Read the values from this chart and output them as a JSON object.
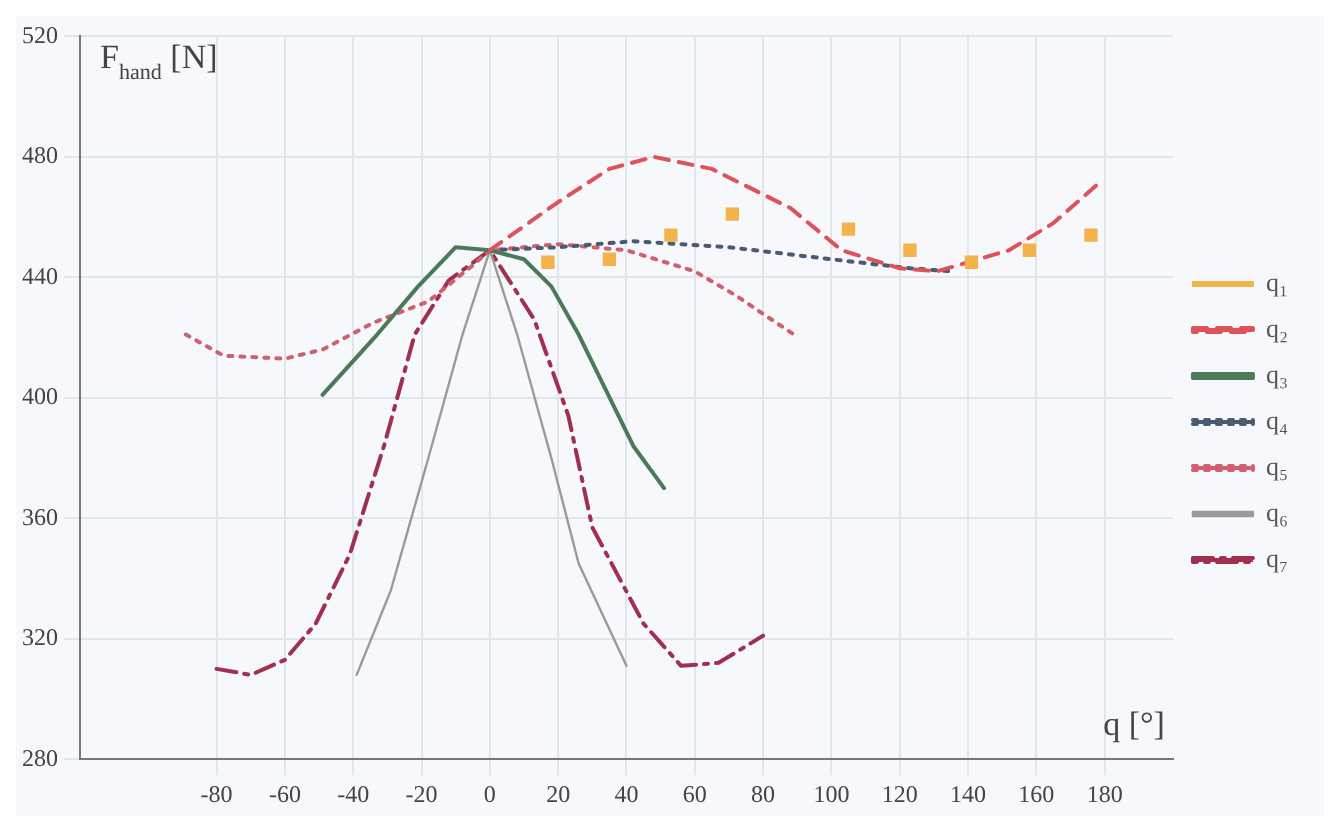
{
  "chart_data": {
    "type": "line",
    "ylabel": "F$_{hand}$ [N]",
    "xlabel": "q [°]",
    "xlim": [
      -120,
      200
    ],
    "ylim": [
      280,
      520
    ],
    "xticks": [
      -80,
      -60,
      -40,
      -20,
      0,
      20,
      40,
      60,
      80,
      100,
      120,
      140,
      160,
      180
    ],
    "yticks": [
      280,
      320,
      360,
      400,
      440,
      480,
      520
    ],
    "grid": true,
    "legend": "right",
    "marker": "none",
    "series": [
      {
        "name": "q₁",
        "type": "scatter",
        "marker": "square",
        "color": "#f2b34a",
        "x": [
          17,
          35,
          53,
          71,
          105,
          123,
          141,
          158,
          176
        ],
        "values": [
          445,
          446,
          454,
          461,
          456,
          449,
          445,
          449,
          454
        ]
      },
      {
        "name": "q₂",
        "color": "#e0525a",
        "line_style": "dashed",
        "x": [
          0,
          20,
          35,
          48,
          65,
          88,
          103,
          120,
          131,
          152,
          165,
          179
        ],
        "values": [
          449,
          465,
          476,
          480,
          476,
          463,
          449,
          443,
          442,
          449,
          458,
          472
        ]
      },
      {
        "name": "q₃",
        "color": "#4a7a5a",
        "line_style": "solid",
        "x": [
          -49,
          -33,
          -21,
          -10,
          0,
          10,
          18,
          26,
          42,
          51
        ],
        "values": [
          401,
          421,
          437,
          450,
          449,
          446,
          437,
          421,
          384,
          370
        ]
      },
      {
        "name": "q₄",
        "color": "#4a5a70",
        "line_style": "dotted",
        "x": [
          0,
          20,
          42,
          70,
          100,
          123,
          135
        ],
        "values": [
          449,
          450,
          452,
          450,
          446,
          443,
          442
        ]
      },
      {
        "name": "q₅",
        "color": "#d06070",
        "line_style": "dotted",
        "x": [
          -89,
          -78,
          -60,
          -49,
          -34,
          -18,
          -5,
          0,
          20,
          40,
          60,
          72,
          89
        ],
        "values": [
          421,
          414,
          413,
          416,
          425,
          432,
          444,
          449,
          451,
          449,
          442,
          434,
          421
        ]
      },
      {
        "name": "q₆",
        "color": "#9a9a9a",
        "line_style": "solid",
        "x": [
          -39,
          -29,
          -18,
          -8,
          0,
          8,
          18,
          26,
          40
        ],
        "values": [
          308,
          336,
          380,
          421,
          449,
          421,
          380,
          345,
          311
        ]
      },
      {
        "name": "q₇",
        "color": "#a03050",
        "line_style": "dashdot",
        "x": [
          -80,
          -70,
          -60,
          -51,
          -41,
          -31,
          -22,
          -12,
          0,
          13,
          23,
          30,
          45,
          56,
          67,
          80
        ],
        "values": [
          310,
          308,
          313,
          325,
          348,
          384,
          421,
          439,
          449,
          426,
          394,
          357,
          325,
          311,
          312,
          321
        ]
      }
    ]
  }
}
